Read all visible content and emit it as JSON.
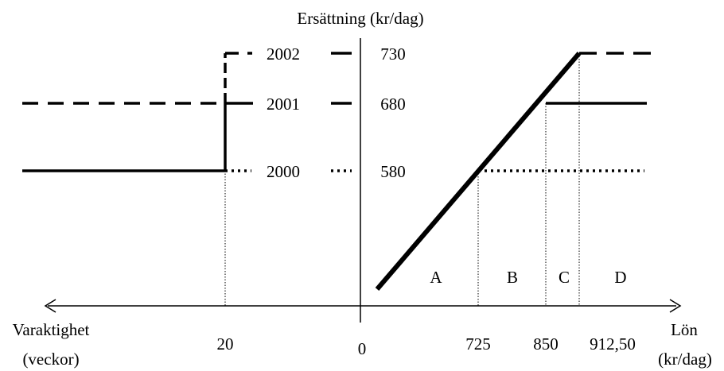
{
  "axes": {
    "y_label": "Ersättning (kr/dag)",
    "x_left_label_line1": "Varaktighet",
    "x_left_label_line2": "(veckor)",
    "x_right_label_line1": "Lön",
    "x_right_label_line2": "(kr/dag)",
    "origin_label": "0"
  },
  "duration_ticks": [
    "20"
  ],
  "wage_ticks": [
    "725",
    "850",
    "912,50"
  ],
  "benefit_levels": [
    {
      "year": "2000",
      "value": "580",
      "line_style": "dotted"
    },
    {
      "year": "2001",
      "value": "680",
      "line_style": "solid"
    },
    {
      "year": "2002",
      "value": "730",
      "line_style": "dashed"
    }
  ],
  "regions": [
    "A",
    "B",
    "C",
    "D"
  ],
  "colors": {
    "stroke": "#000000",
    "background": "#ffffff"
  }
}
